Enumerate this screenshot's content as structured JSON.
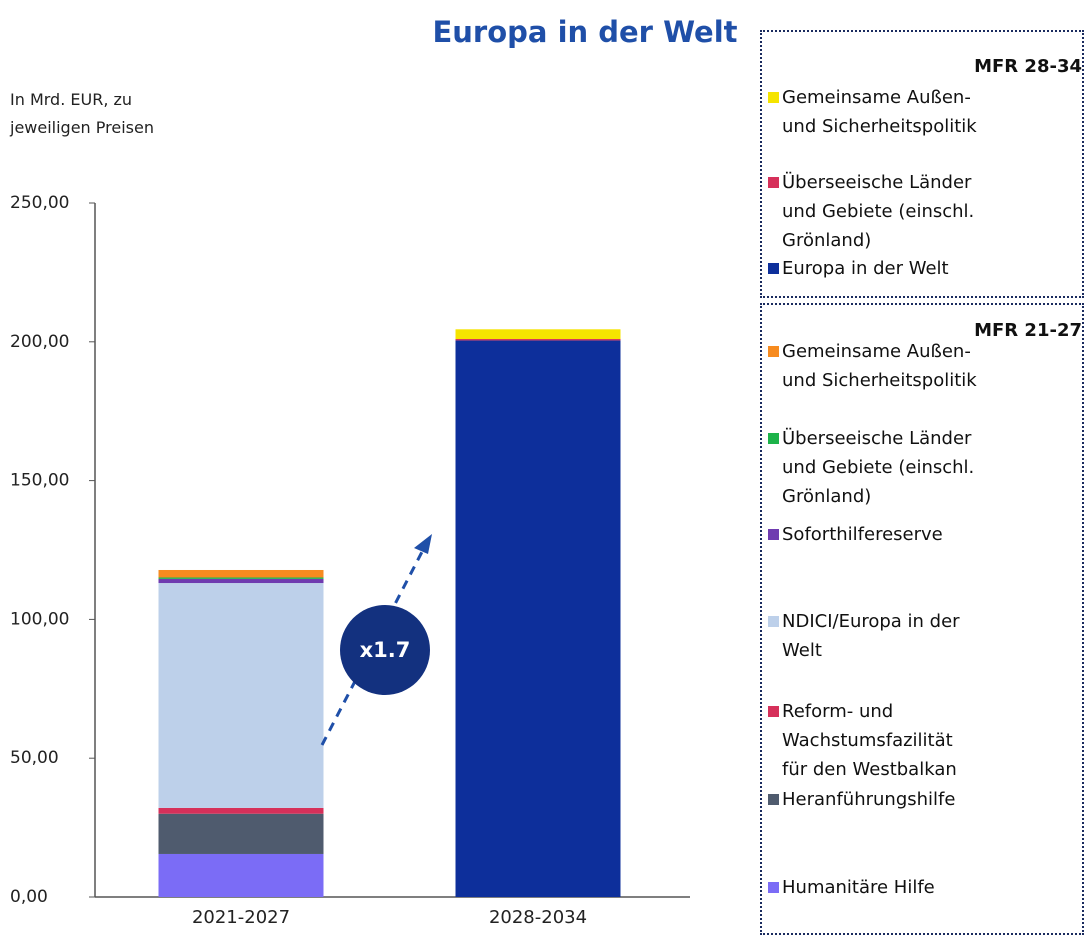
{
  "chart_data": {
    "type": "stacked_bar",
    "title": "Europa in der Welt",
    "y_label": "In Mrd. EUR, zu jeweiligen Preisen",
    "categories": [
      "2021-2027",
      "2028-2034"
    ],
    "ylim": [
      0,
      250
    ],
    "yticks": [
      {
        "value": 0,
        "label": "0,00"
      },
      {
        "value": 50,
        "label": "50,00"
      },
      {
        "value": 100,
        "label": "100,00"
      },
      {
        "value": 150,
        "label": "150,00"
      },
      {
        "value": 200,
        "label": "200,00"
      },
      {
        "value": 250,
        "label": "250,00"
      }
    ],
    "grid": false,
    "legend_titles": [
      "MFR 28-34",
      "MFR 21-27"
    ],
    "series": [
      {
        "name": "Gemeinsame Außen-\nund Sicherheitspolitik",
        "color": "#f5e400",
        "values": [
          null,
          3.5
        ]
      },
      {
        "name": "Überseeische Länder\nund Gebiete (einschl.\nGrönland)",
        "color": "#d6305a",
        "values": [
          null,
          0.5
        ]
      },
      {
        "name": "Europa in der Welt",
        "color": "#0d2f9b",
        "values": [
          null,
          200.5
        ]
      },
      {
        "name": "Gemeinsame Außen-\nund Sicherheitspolitik",
        "color": "#f78b1f",
        "values": [
          2.7,
          null
        ]
      },
      {
        "name": "Überseeische Länder\nund Gebiete (einschl.\nGrönland)",
        "color": "#1db34a",
        "values": [
          0.5,
          null
        ]
      },
      {
        "name": "Soforthilfereserve",
        "color": "#6f3bb0",
        "values": [
          1.5,
          null
        ]
      },
      {
        "name": "NDICI/Europa in der\nWelt",
        "color": "#bdd0ea",
        "values": [
          81,
          null
        ]
      },
      {
        "name": "Reform- und\nWachstumsfazilität\nfür den Westbalkan",
        "color": "#d6305a",
        "values": [
          2.1,
          null
        ]
      },
      {
        "name": "Heranführungshilfe",
        "color": "#4f5b6e",
        "values": [
          14.5,
          null
        ]
      },
      {
        "name": "Humanitäre Hilfe",
        "color": "#7b6cf6",
        "values": [
          15.5,
          null
        ]
      }
    ],
    "annotation": "x1.7"
  }
}
